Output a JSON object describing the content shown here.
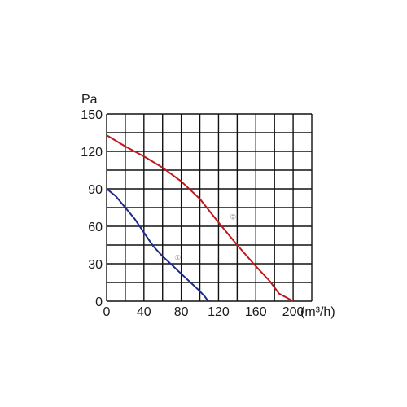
{
  "chart_data": {
    "type": "line",
    "y_unit": "Pa",
    "x_unit": "(m³/h)",
    "xlim": [
      0,
      220
    ],
    "ylim": [
      0,
      150
    ],
    "x_ticks": [
      "0",
      "40",
      "80",
      "120",
      "160",
      "200"
    ],
    "x_tick_values": [
      0,
      40,
      80,
      120,
      160,
      200
    ],
    "y_ticks": [
      "150",
      "120",
      "90",
      "60",
      "30",
      "0"
    ],
    "y_tick_values": [
      150,
      120,
      90,
      60,
      30,
      0
    ],
    "x_grid_step": 20,
    "y_grid_step": 15,
    "grid": true,
    "series": [
      {
        "marker": "①",
        "color": "#1f2b86",
        "x": [
          0,
          10,
          20,
          30,
          40,
          50,
          60,
          70,
          80,
          90,
          100,
          105,
          108,
          110
        ],
        "y": [
          90,
          84,
          75,
          66,
          55,
          44,
          36,
          29,
          22,
          15,
          8,
          4,
          1,
          0
        ]
      },
      {
        "marker": "②",
        "color": "#c0171d",
        "x": [
          0,
          20,
          40,
          60,
          80,
          100,
          120,
          140,
          160,
          175,
          185,
          195,
          200
        ],
        "y": [
          133,
          124,
          116,
          107,
          96,
          82,
          63,
          45,
          28,
          16,
          6,
          2,
          0
        ]
      }
    ]
  }
}
